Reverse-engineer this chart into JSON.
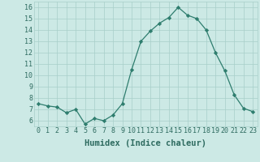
{
  "x": [
    0,
    1,
    2,
    3,
    4,
    5,
    6,
    7,
    8,
    9,
    10,
    11,
    12,
    13,
    14,
    15,
    16,
    17,
    18,
    19,
    20,
    21,
    22,
    23
  ],
  "y": [
    7.5,
    7.3,
    7.2,
    6.7,
    7.0,
    5.7,
    6.2,
    6.0,
    6.5,
    7.5,
    10.5,
    13.0,
    13.9,
    14.6,
    15.1,
    16.0,
    15.3,
    15.0,
    14.0,
    12.0,
    10.4,
    8.3,
    7.1,
    6.8
  ],
  "line_color": "#2e7d6e",
  "marker": "D",
  "marker_size": 2.2,
  "bg_color": "#cce9e5",
  "grid_color": "#a8cfc9",
  "xlabel": "Humidex (Indice chaleur)",
  "ylim": [
    5.5,
    16.5
  ],
  "xlim": [
    -0.5,
    23.5
  ],
  "yticks": [
    6,
    7,
    8,
    9,
    10,
    11,
    12,
    13,
    14,
    15,
    16
  ],
  "xticks": [
    0,
    1,
    2,
    3,
    4,
    5,
    6,
    7,
    8,
    9,
    10,
    11,
    12,
    13,
    14,
    15,
    16,
    17,
    18,
    19,
    20,
    21,
    22,
    23
  ],
  "xlabel_fontsize": 7.5,
  "tick_fontsize": 6.0,
  "label_color": "#2e6b60"
}
